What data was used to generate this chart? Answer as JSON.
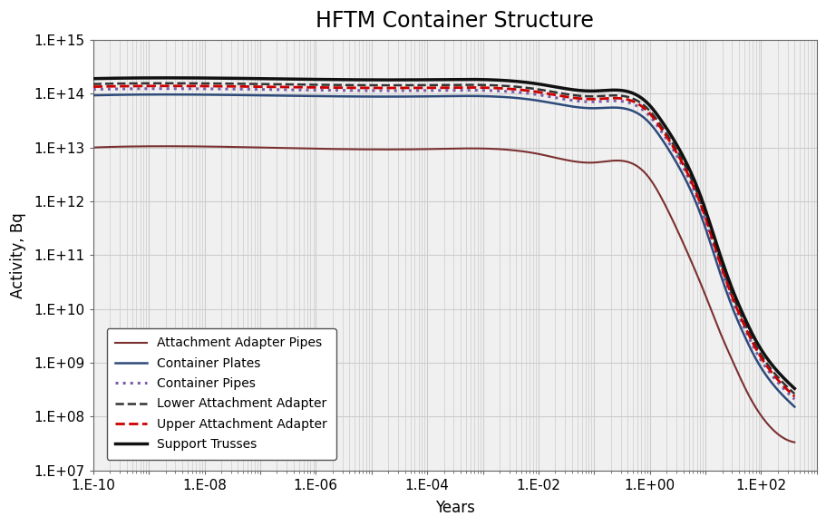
{
  "title": "HFTM Container Structure",
  "xlabel": "Years",
  "ylabel": "Activity, Bq",
  "xlog_min": -10,
  "xlog_max": 3,
  "ylog_min": 7,
  "ylog_max": 15,
  "x_tick_exponents": [
    -10,
    -8,
    -6,
    -4,
    -2,
    0,
    2
  ],
  "y_tick_exponents": [
    7,
    8,
    9,
    10,
    11,
    12,
    13,
    14,
    15
  ],
  "series": {
    "attachment_adapter_pipes": {
      "label": "Attachment Adapter Pipes",
      "color": "#7B3030",
      "linestyle": "solid",
      "linewidth": 1.5,
      "zorder": 2,
      "points_x_log": [
        -10,
        -7,
        -4,
        -2,
        -1,
        0,
        0.2,
        0.5,
        0.8,
        1.0,
        1.2,
        1.5,
        1.8,
        2.1,
        2.4,
        2.6
      ],
      "points_y_log": [
        13.0,
        13.0,
        12.97,
        12.88,
        12.72,
        12.42,
        12.08,
        11.45,
        10.75,
        10.25,
        9.72,
        9.0,
        8.35,
        7.88,
        7.6,
        7.52
      ]
    },
    "container_plates": {
      "label": "Container Plates",
      "color": "#2E4B7A",
      "linestyle": "solid",
      "linewidth": 1.8,
      "zorder": 3,
      "points_x_log": [
        -10,
        -7,
        -4,
        -2,
        -1,
        0,
        0.2,
        0.5,
        0.8,
        1.0,
        1.15,
        1.3,
        1.5,
        1.7,
        1.9,
        2.1,
        2.4,
        2.6
      ],
      "points_y_log": [
        13.97,
        13.97,
        13.95,
        13.87,
        13.73,
        13.45,
        13.18,
        12.68,
        12.05,
        11.5,
        11.02,
        10.55,
        9.98,
        9.5,
        9.08,
        8.75,
        8.38,
        8.18
      ]
    },
    "container_pipes": {
      "label": "Container Pipes",
      "color": "#7B5EA7",
      "linestyle": "dotted",
      "linewidth": 2.2,
      "zorder": 4,
      "points_x_log": [
        -10,
        -7,
        -4,
        -2,
        -1,
        0,
        0.2,
        0.5,
        0.8,
        1.0,
        1.15,
        1.3,
        1.5,
        1.7,
        1.9,
        2.1,
        2.4,
        2.6
      ],
      "points_y_log": [
        14.08,
        14.08,
        14.06,
        13.98,
        13.85,
        13.58,
        13.31,
        12.82,
        12.19,
        11.64,
        11.16,
        10.69,
        10.12,
        9.64,
        9.22,
        8.89,
        8.52,
        8.32
      ]
    },
    "lower_attachment_adapter": {
      "label": "Lower Attachment Adapter",
      "color": "#333333",
      "linestyle": "dashed",
      "linewidth": 1.8,
      "zorder": 5,
      "points_x_log": [
        -10,
        -7,
        -4,
        -2,
        -1,
        0,
        0.2,
        0.5,
        0.8,
        1.0,
        1.15,
        1.3,
        1.5,
        1.7,
        1.9,
        2.1,
        2.4,
        2.6
      ],
      "points_y_log": [
        14.18,
        14.18,
        14.16,
        14.08,
        13.95,
        13.68,
        13.41,
        12.92,
        12.29,
        11.74,
        11.26,
        10.79,
        10.22,
        9.74,
        9.32,
        8.99,
        8.62,
        8.42
      ]
    },
    "support_trusses": {
      "label": "Support Trusses",
      "color": "#111111",
      "linestyle": "solid",
      "linewidth": 2.5,
      "zorder": 6,
      "points_x_log": [
        -10,
        -7,
        -4,
        -2,
        -1,
        0,
        0.2,
        0.5,
        0.8,
        1.0,
        1.15,
        1.3,
        1.5,
        1.7,
        1.9,
        2.1,
        2.4,
        2.6
      ],
      "points_y_log": [
        14.28,
        14.28,
        14.26,
        14.18,
        14.05,
        13.78,
        13.51,
        13.02,
        12.39,
        11.84,
        11.36,
        10.89,
        10.32,
        9.84,
        9.42,
        9.09,
        8.72,
        8.52
      ]
    },
    "upper_attachment_adapter": {
      "label": "Upper Attachment Adapter",
      "color": "#CC0000",
      "linestyle": "dashed",
      "linewidth": 2.0,
      "zorder": 5,
      "points_x_log": [
        -10,
        -7,
        -4,
        -2,
        -1,
        0,
        0.2,
        0.5,
        0.8,
        1.0,
        1.15,
        1.3,
        1.5,
        1.7,
        1.9,
        2.1,
        2.4,
        2.6
      ],
      "points_y_log": [
        14.13,
        14.13,
        14.11,
        14.03,
        13.9,
        13.63,
        13.36,
        12.87,
        12.24,
        11.69,
        11.21,
        10.74,
        10.17,
        9.69,
        9.27,
        8.94,
        8.57,
        8.37
      ]
    }
  },
  "background_color": "#ffffff",
  "plot_bg_color": "#f0f0f0",
  "grid_color": "#cccccc",
  "title_fontsize": 17,
  "label_fontsize": 12,
  "tick_fontsize": 11
}
